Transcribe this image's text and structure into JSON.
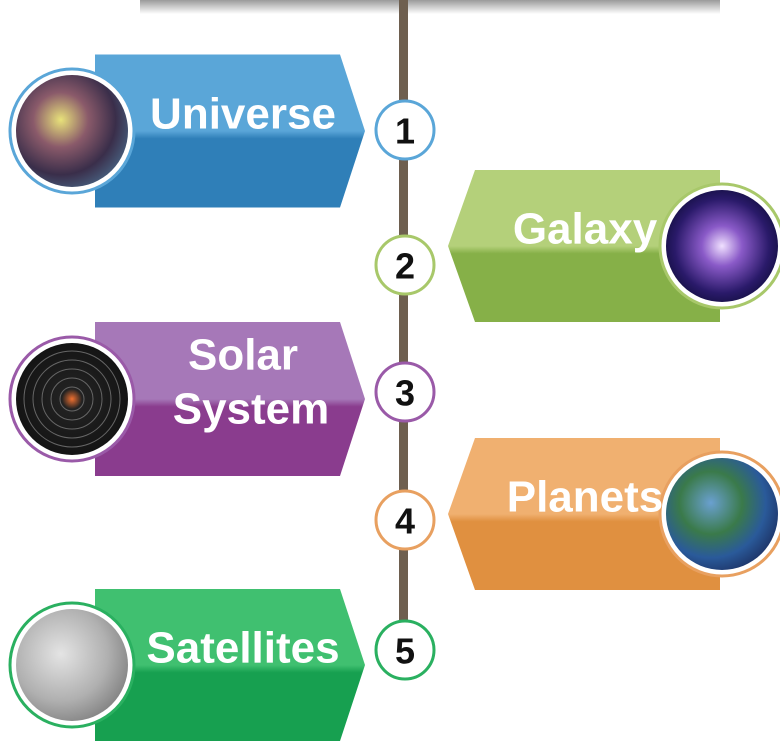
{
  "items": [
    {
      "number": "1",
      "lines": [
        "Universe"
      ]
    },
    {
      "number": "2",
      "lines": [
        "Galaxy"
      ]
    },
    {
      "number": "3",
      "lines": [
        "Solar",
        "System"
      ]
    },
    {
      "number": "4",
      "lines": [
        "Planets"
      ]
    },
    {
      "number": "5",
      "lines": [
        "Satellites"
      ]
    }
  ]
}
